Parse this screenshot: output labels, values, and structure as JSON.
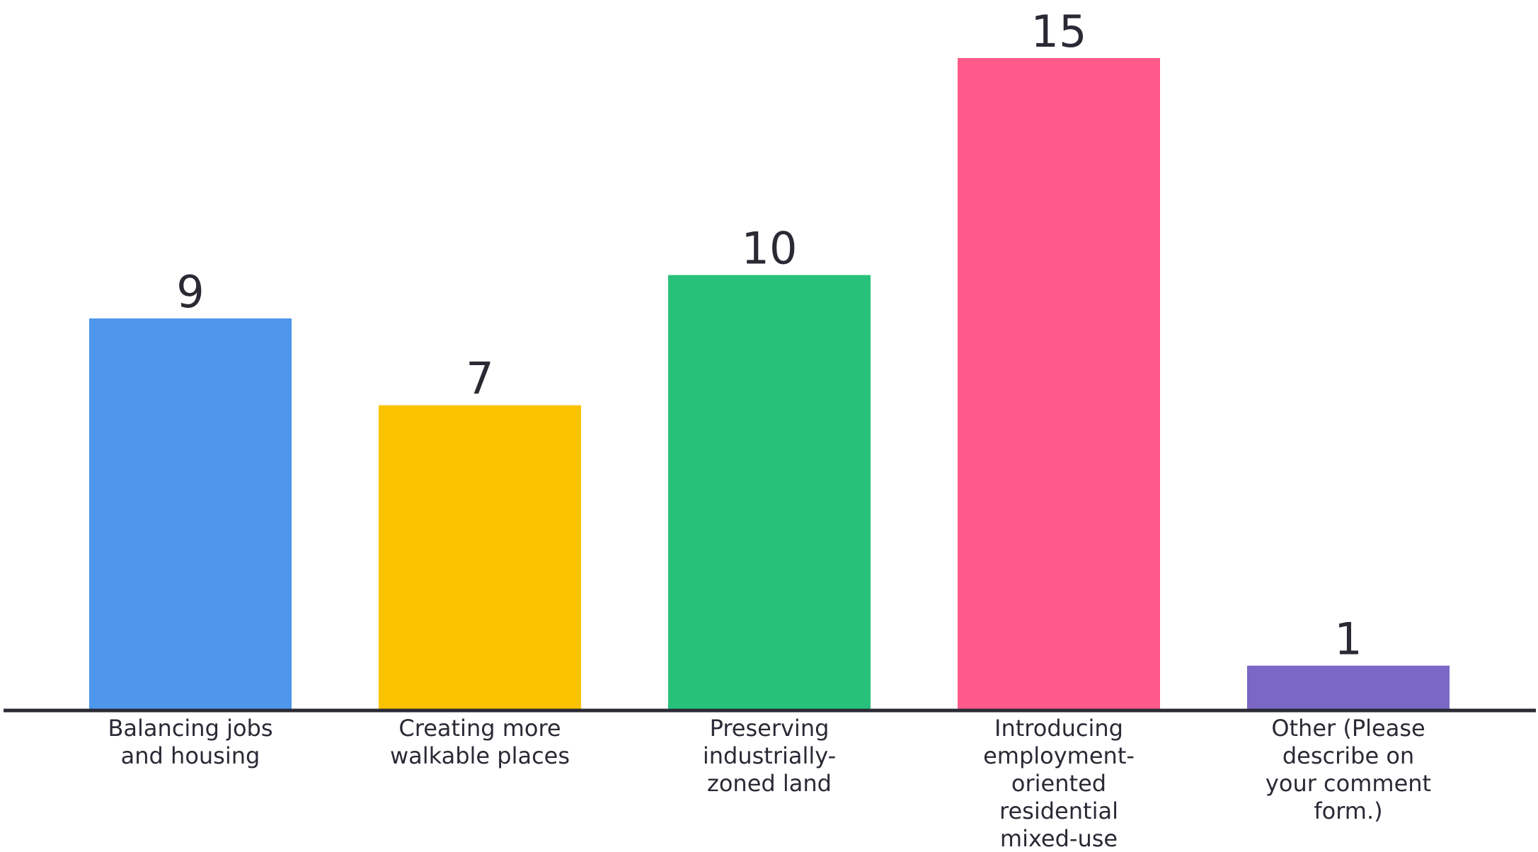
{
  "chart_data": {
    "type": "bar",
    "categories": [
      [
        "Balancing jobs",
        "and housing"
      ],
      [
        "Creating more",
        "walkable places"
      ],
      [
        "Preserving",
        "industrially-",
        "zoned land"
      ],
      [
        "Introducing",
        "employment-",
        "oriented",
        "residential",
        "mixed-use"
      ],
      [
        "Other (Please",
        "describe on",
        "your comment",
        "form.)"
      ]
    ],
    "values": [
      9,
      7,
      10,
      15,
      1
    ],
    "colors": [
      "#4e97ec",
      "#fbc200",
      "#28c17b",
      "#ff5a8a",
      "#7b67c6"
    ],
    "ylim": [
      0,
      15
    ],
    "grid": false,
    "legend": "none",
    "axis_color": "#2a2a35"
  }
}
